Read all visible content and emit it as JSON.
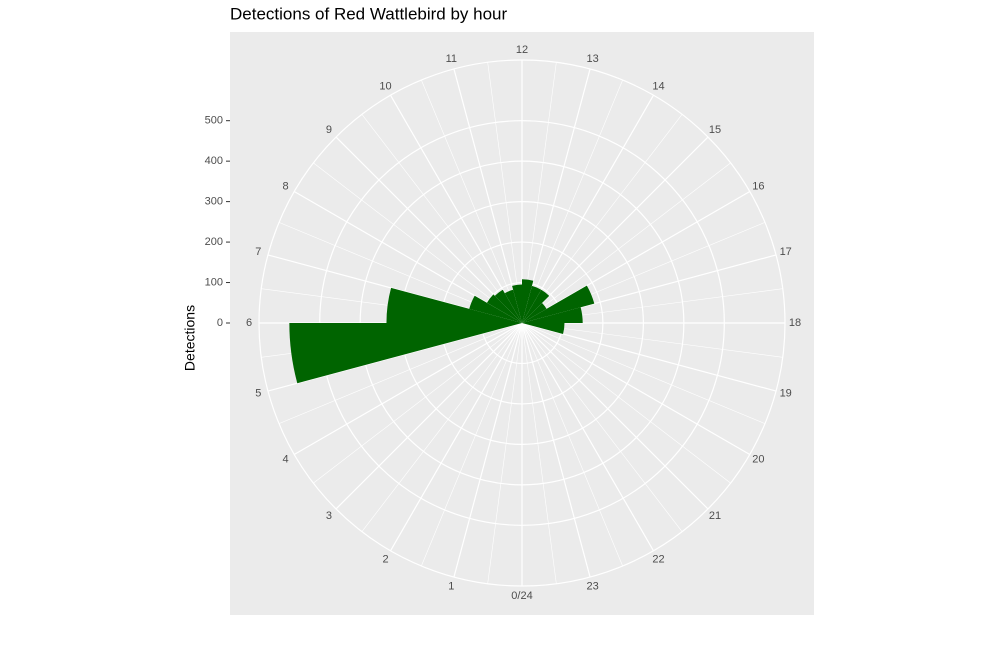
{
  "chart_data": {
    "type": "polar-bar",
    "title": "Detections of Red Wattlebird by hour",
    "ylabel": "Detections",
    "categories": [
      "0/24",
      "1",
      "2",
      "3",
      "4",
      "5",
      "6",
      "7",
      "8",
      "9",
      "10",
      "11",
      "12",
      "13",
      "14",
      "15",
      "16",
      "17",
      "18",
      "19",
      "20",
      "21",
      "22",
      "23"
    ],
    "values": [
      0,
      0,
      0,
      0,
      0,
      575,
      335,
      135,
      100,
      95,
      85,
      95,
      108,
      95,
      95,
      70,
      185,
      150,
      105,
      0,
      0,
      0,
      0,
      0
    ],
    "color": "#006400",
    "xlim": [
      0,
      24
    ],
    "ylim": [
      0,
      650
    ],
    "yticks": [
      0,
      100,
      200,
      300,
      400,
      500
    ],
    "grid": true
  }
}
